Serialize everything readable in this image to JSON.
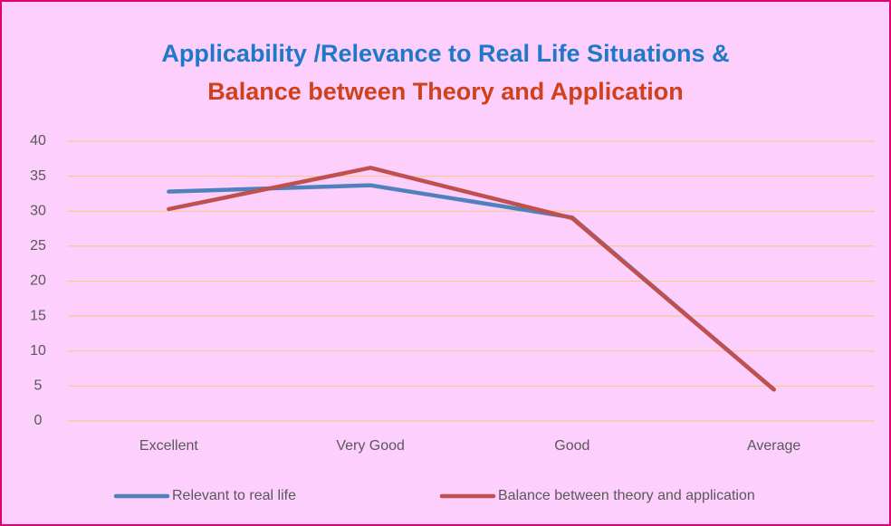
{
  "chart_data": {
    "type": "line",
    "title": [
      "Applicability /Relevance to Real Life Situations &",
      "Balance between Theory and Application"
    ],
    "title_colors": [
      "#1f78c8",
      "#d0401a"
    ],
    "categories": [
      "Excellent",
      "Very Good",
      "Good",
      "Average"
    ],
    "series": [
      {
        "name": "Relevant to real life",
        "color": "#4f81bd",
        "values": [
          32.8,
          33.7,
          29.1,
          4.5
        ]
      },
      {
        "name": "Balance between theory and application",
        "color": "#c0504d",
        "values": [
          30.3,
          36.2,
          29.0,
          4.5
        ]
      }
    ],
    "ylim": [
      0,
      40
    ],
    "yticks": [
      0,
      5,
      10,
      15,
      20,
      25,
      30,
      35,
      40
    ],
    "grid": true,
    "legend": "bottom"
  }
}
